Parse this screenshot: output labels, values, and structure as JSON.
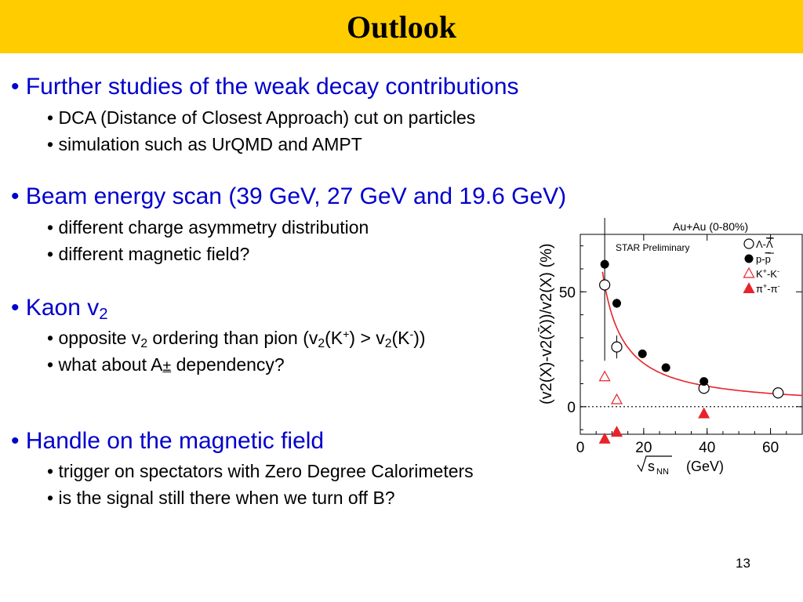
{
  "title": "Outlook",
  "sections": [
    {
      "heading": "Further studies of the weak decay contributions",
      "items": [
        "DCA (Distance of Closest Approach) cut on particles",
        "simulation such as UrQMD and AMPT"
      ]
    },
    {
      "heading": "Beam energy scan (39 GeV, 27 GeV and 19.6 GeV)",
      "items": [
        "different charge asymmetry distribution",
        "different magnetic field?"
      ]
    },
    {
      "heading_text": "Kaon v",
      "heading_sub": "2",
      "items": []
    },
    {
      "heading": "Handle on the magnetic field",
      "items": [
        "trigger on spectators with Zero Degree Calorimeters",
        "is the signal still there when we turn off B?"
      ]
    }
  ],
  "kaon_items": {
    "ordering": {
      "part1": "opposite v",
      "sub1": "2",
      "part2": " ordering than pion (v",
      "sub2": "2",
      "part3": "(K",
      "sup1": "+",
      "part4": ") > v",
      "sub3": "2",
      "part5": "(K",
      "sup2": "-",
      "part6": "))"
    },
    "dependency": {
      "part1": "what about A",
      "symbol": "±",
      "part2": " dependency?"
    }
  },
  "bullet": "•",
  "page_number": "13",
  "chart_data": {
    "type": "scatter",
    "title": "Au+Au (0-80%)",
    "annotation": "STAR Preliminary",
    "xlabel": "√s_NN (GeV)",
    "xlabel_main": "s",
    "xlabel_sub": "NN",
    "xlabel_unit": "(GeV)",
    "ylabel": "(v2(X)-v2(X̄))/v2(X) (%)",
    "xlim": [
      0,
      70
    ],
    "ylim": [
      -12,
      75
    ],
    "xticks": [
      "0",
      "20",
      "40",
      "60"
    ],
    "xtick_values": [
      0,
      20,
      40,
      60
    ],
    "yticks": [
      "0",
      "50"
    ],
    "ytick_values": [
      0,
      50
    ],
    "legend_position": "top-right",
    "reference_line_y": 0,
    "series": [
      {
        "name": "Λ-Λ̄",
        "label_main": "Λ-",
        "label_bar": "Λ",
        "marker": "circle-open",
        "color": "#000000",
        "points": [
          {
            "x": 7.7,
            "y": 53,
            "err": 33
          },
          {
            "x": 11.5,
            "y": 26,
            "err": 5
          },
          {
            "x": 39,
            "y": 8,
            "err": 2
          },
          {
            "x": 62.4,
            "y": 6,
            "err": 1.5
          }
        ]
      },
      {
        "name": "p-p̄",
        "label_main": "p-",
        "label_bar": "p",
        "marker": "circle-filled",
        "color": "#000000",
        "points": [
          {
            "x": 7.7,
            "y": 62,
            "err": 2
          },
          {
            "x": 11.5,
            "y": 45,
            "err": 2
          },
          {
            "x": 19.6,
            "y": 23,
            "err": 1
          },
          {
            "x": 27,
            "y": 17,
            "err": 1
          },
          {
            "x": 39,
            "y": 11,
            "err": 1
          }
        ]
      },
      {
        "name": "K+-K-",
        "label_main": "K",
        "label_sup1": "+",
        "label_mid": "-K",
        "label_sup2": "-",
        "marker": "triangle-open",
        "color": "#e8232a",
        "points": [
          {
            "x": 7.7,
            "y": 13
          },
          {
            "x": 11.5,
            "y": 3
          }
        ]
      },
      {
        "name": "π+-π-",
        "label_main": "π",
        "label_sup1": "+",
        "label_mid": "-π",
        "label_sup2": "-",
        "marker": "triangle-filled",
        "color": "#e8232a",
        "points": [
          {
            "x": 7.7,
            "y": -14
          },
          {
            "x": 11.5,
            "y": -11
          },
          {
            "x": 39,
            "y": -3
          }
        ]
      }
    ],
    "fit_curve": {
      "color": "#e8232a",
      "formula": "a / sqrt(s) ^ b",
      "x_start": 7,
      "x_end": 70
    }
  },
  "colors": {
    "title_bar": "#ffcc00",
    "heading_text": "#0000cc",
    "body_text": "#000000",
    "marker_red": "#e8232a"
  }
}
